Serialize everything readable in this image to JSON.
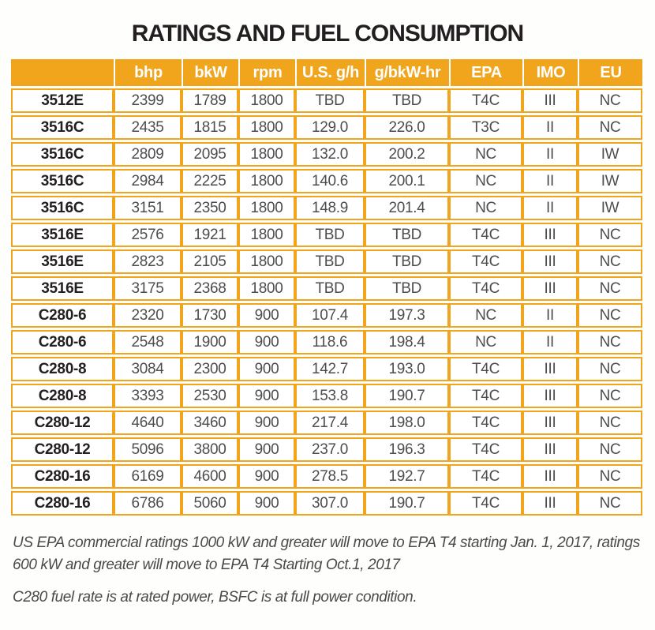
{
  "title": "RATINGS AND FUEL CONSUMPTION",
  "colors": {
    "accent_orange": "#F0A51C",
    "header_text": "#FFFFFF",
    "data_text": "#4D4D4F",
    "model_text": "#231F20"
  },
  "table": {
    "columns": [
      "",
      "bhp",
      "bkW",
      "rpm",
      "U.S. g/h",
      "g/bkW-hr",
      "EPA",
      "IMO",
      "EU"
    ],
    "rows": [
      [
        "3512E",
        "2399",
        "1789",
        "1800",
        "TBD",
        "TBD",
        "T4C",
        "III",
        "NC"
      ],
      [
        "3516C",
        "2435",
        "1815",
        "1800",
        "129.0",
        "226.0",
        "T3C",
        "II",
        "NC"
      ],
      [
        "3516C",
        "2809",
        "2095",
        "1800",
        "132.0",
        "200.2",
        "NC",
        "II",
        "IW"
      ],
      [
        "3516C",
        "2984",
        "2225",
        "1800",
        "140.6",
        "200.1",
        "NC",
        "II",
        "IW"
      ],
      [
        "3516C",
        "3151",
        "2350",
        "1800",
        "148.9",
        "201.4",
        "NC",
        "II",
        "IW"
      ],
      [
        "3516E",
        "2576",
        "1921",
        "1800",
        "TBD",
        "TBD",
        "T4C",
        "III",
        "NC"
      ],
      [
        "3516E",
        "2823",
        "2105",
        "1800",
        "TBD",
        "TBD",
        "T4C",
        "III",
        "NC"
      ],
      [
        "3516E",
        "3175",
        "2368",
        "1800",
        "TBD",
        "TBD",
        "T4C",
        "III",
        "NC"
      ],
      [
        "C280-6",
        "2320",
        "1730",
        "900",
        "107.4",
        "197.3",
        "NC",
        "II",
        "NC"
      ],
      [
        "C280-6",
        "2548",
        "1900",
        "900",
        "118.6",
        "198.4",
        "NC",
        "II",
        "NC"
      ],
      [
        "C280-8",
        "3084",
        "2300",
        "900",
        "142.7",
        "193.0",
        "T4C",
        "III",
        "NC"
      ],
      [
        "C280-8",
        "3393",
        "2530",
        "900",
        "153.8",
        "190.7",
        "T4C",
        "III",
        "NC"
      ],
      [
        "C280-12",
        "4640",
        "3460",
        "900",
        "217.4",
        "198.0",
        "T4C",
        "III",
        "NC"
      ],
      [
        "C280-12",
        "5096",
        "3800",
        "900",
        "237.0",
        "196.3",
        "T4C",
        "III",
        "NC"
      ],
      [
        "C280-16",
        "6169",
        "4600",
        "900",
        "278.5",
        "192.7",
        "T4C",
        "III",
        "NC"
      ],
      [
        "C280-16",
        "6786",
        "5060",
        "900",
        "307.0",
        "190.7",
        "T4C",
        "III",
        "NC"
      ]
    ]
  },
  "footnotes": [
    "US EPA commercial ratings 1000 kW and greater will move to EPA T4 starting Jan. 1, 2017, ratings 600 kW and greater will move to EPA T4 Starting Oct.1, 2017",
    "C280 fuel rate is at rated power, BSFC is at full power condition."
  ]
}
